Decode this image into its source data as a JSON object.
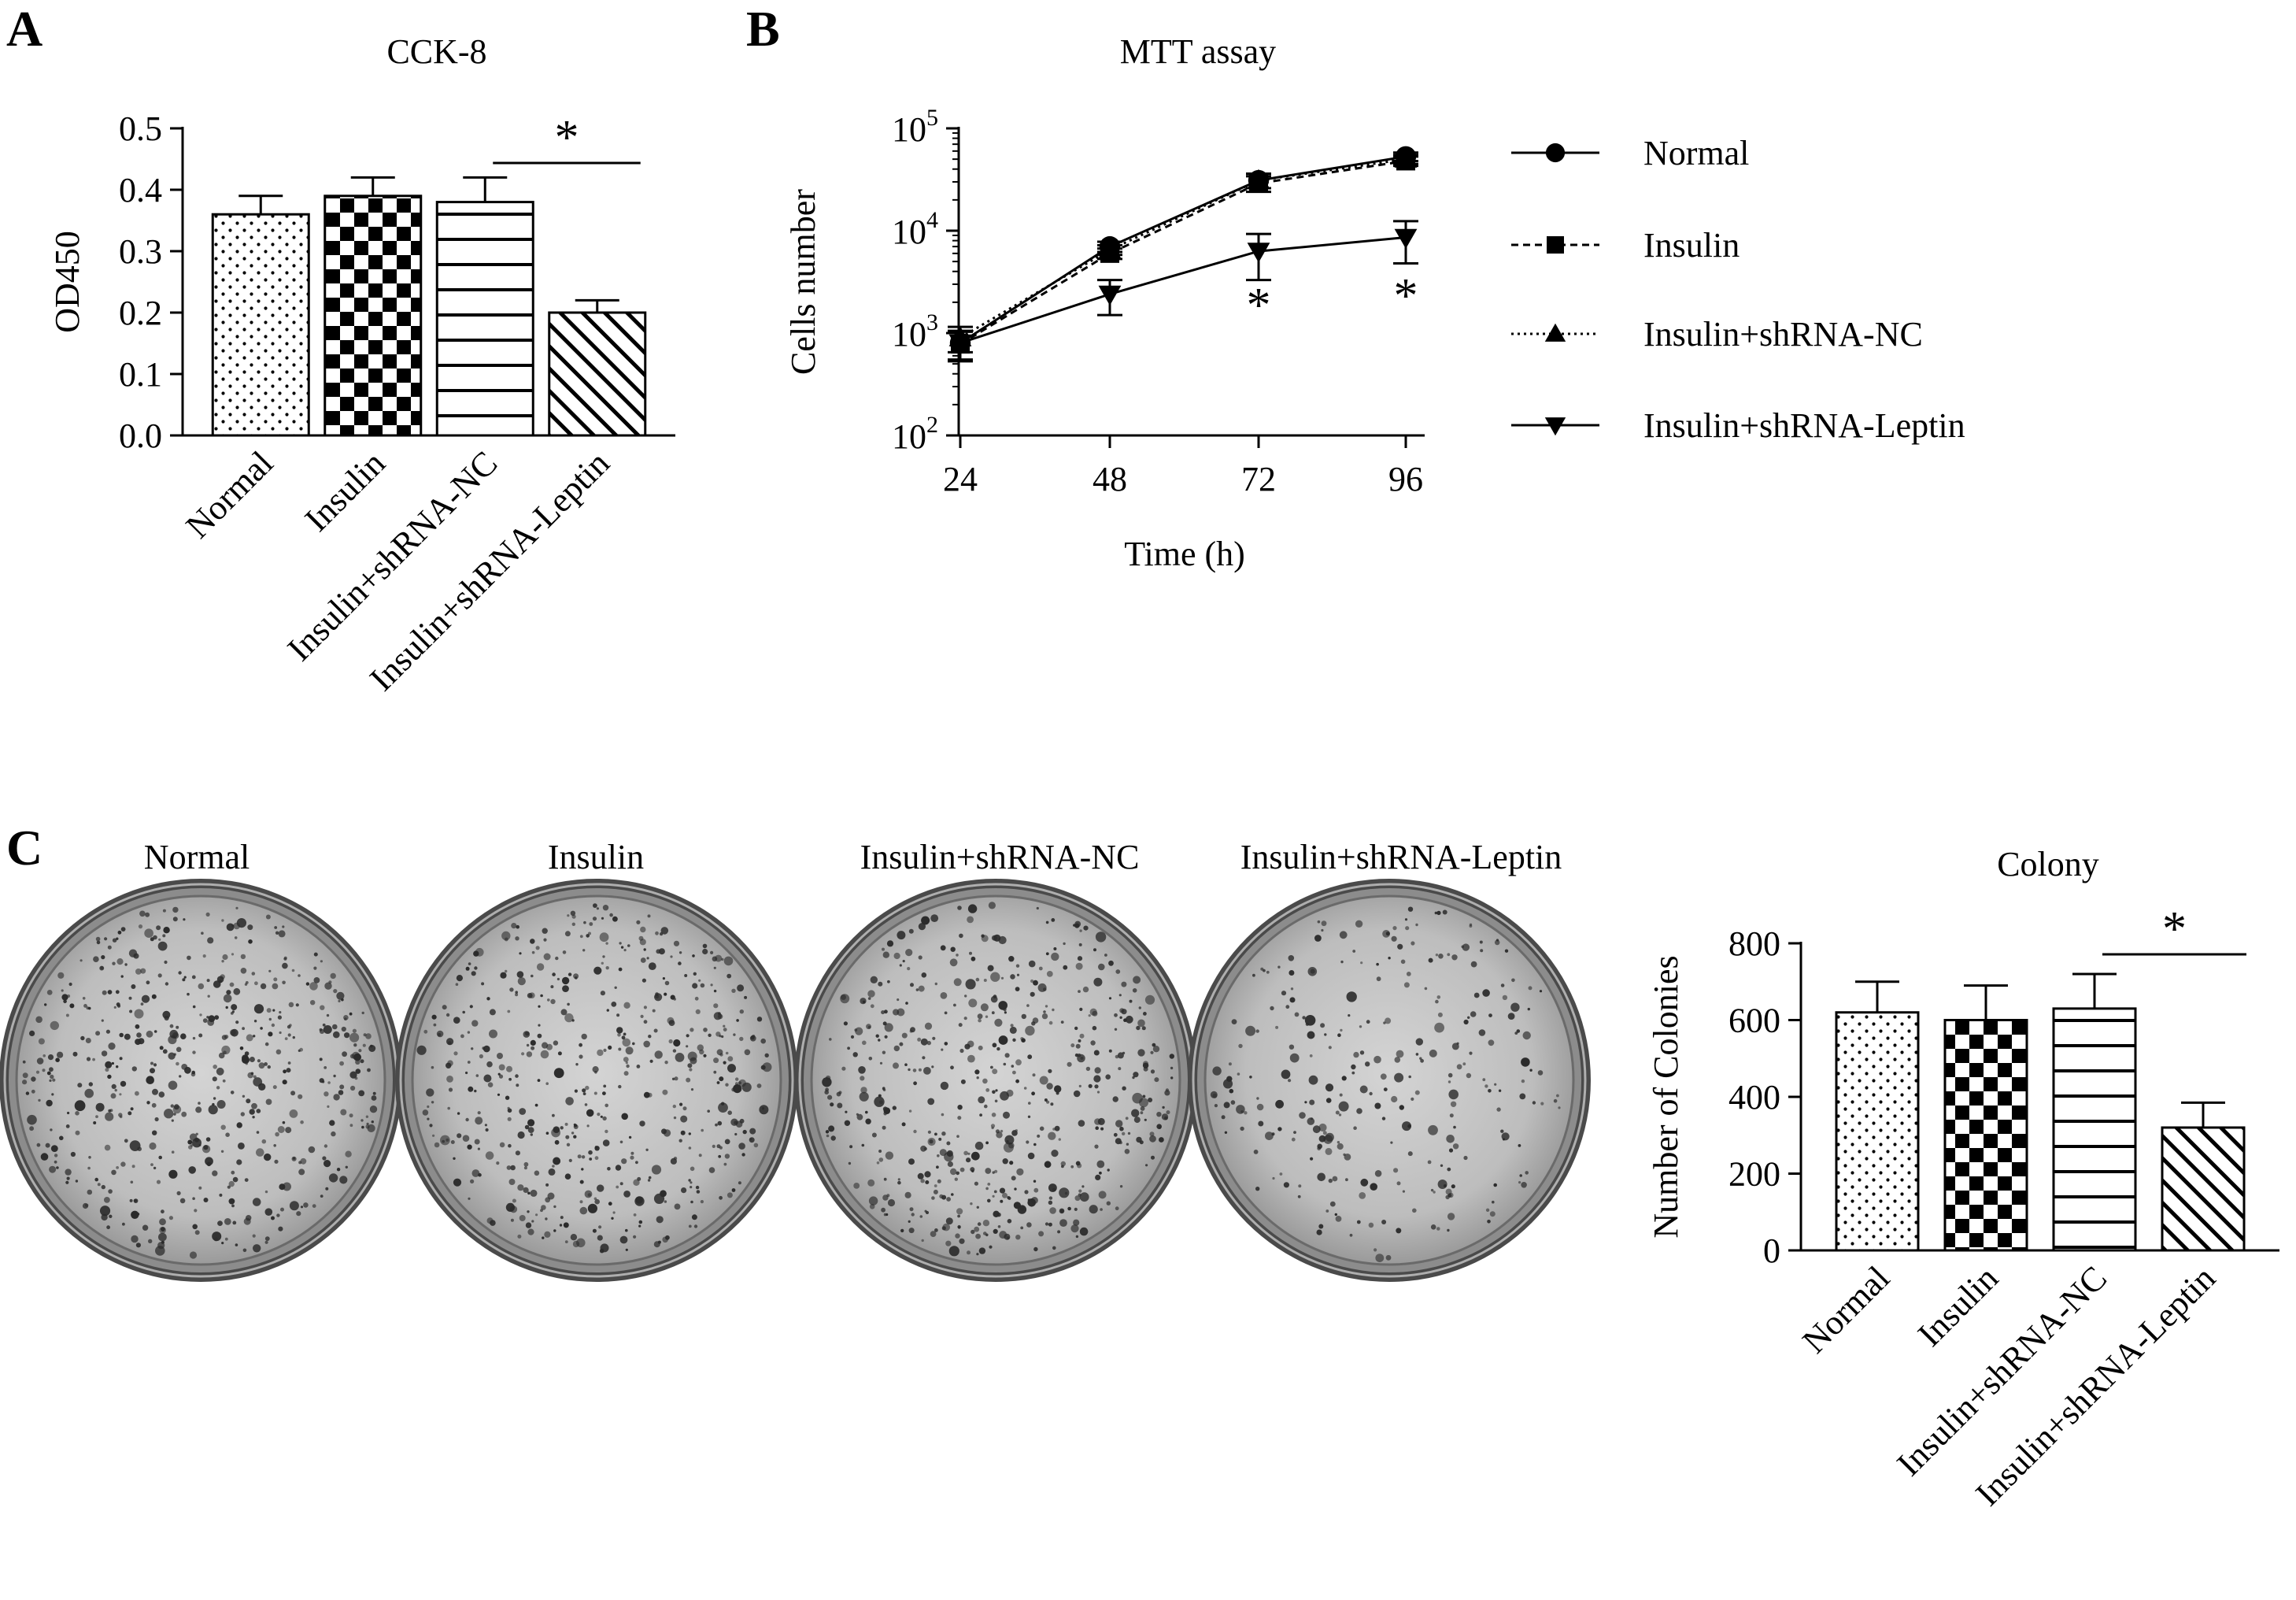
{
  "panels": {
    "a": "A",
    "b": "B",
    "c": "C"
  },
  "colors": {
    "ink": "#000000",
    "background": "#ffffff",
    "dish_rim": "#4a4a4a",
    "dish_inner": "#c4c4c4",
    "colony": "#2b2b2b"
  },
  "plates": {
    "labels": [
      "Normal",
      "Insulin",
      "Insulin+shRNA-NC",
      "Insulin+shRNA-Leptin"
    ],
    "colony_density": [
      620,
      600,
      630,
      320
    ]
  },
  "chart_data": [
    {
      "type": "bar",
      "title": "CCK-8",
      "ylabel": "OD450",
      "xlabel": "",
      "categories": [
        "Normal",
        "Insulin",
        "Insulin+shRNA-NC",
        "Insulin+shRNA-Leptin"
      ],
      "values": [
        0.36,
        0.39,
        0.38,
        0.2
      ],
      "errors": [
        0.03,
        0.03,
        0.04,
        0.02
      ],
      "patterns": [
        "dots",
        "checker",
        "hstripes",
        "diagonal"
      ],
      "ylim": [
        0,
        0.5
      ],
      "yticks": [
        "0.0",
        "0.1",
        "0.2",
        "0.3",
        "0.4",
        "0.5"
      ],
      "significance": {
        "from": 2,
        "to": 3,
        "label": "*"
      }
    },
    {
      "type": "line",
      "title": "MTT assay",
      "xlabel": "Time (h)",
      "ylabel": "Cells number",
      "yscale": "log",
      "ylim": [
        100,
        100000
      ],
      "yticks": [
        {
          "base": "10",
          "exp": "2"
        },
        {
          "base": "10",
          "exp": "3"
        },
        {
          "base": "10",
          "exp": "4"
        },
        {
          "base": "10",
          "exp": "5"
        }
      ],
      "x": [
        24,
        48,
        72,
        96
      ],
      "xticks": [
        "24",
        "48",
        "72",
        "96"
      ],
      "series": [
        {
          "name": "Normal",
          "marker": "circle",
          "dash": "solid",
          "values": [
            800,
            7000,
            31000,
            53000
          ],
          "errors": [
            250,
            800,
            5000,
            5000
          ]
        },
        {
          "name": "Insulin",
          "marker": "square",
          "dash": "dashed",
          "values": [
            780,
            6000,
            29000,
            48000
          ],
          "errors": [
            250,
            700,
            5000,
            5000
          ]
        },
        {
          "name": "Insulin+shRNA-NC",
          "marker": "triangle-up",
          "dash": "dotted",
          "values": [
            900,
            6500,
            31000,
            50000
          ],
          "errors": [
            250,
            700,
            5000,
            5000
          ]
        },
        {
          "name": "Insulin+shRNA-Leptin",
          "marker": "triangle-down",
          "dash": "solid",
          "values": [
            800,
            2400,
            6300,
            8600
          ],
          "errors": [
            250,
            900,
            3000,
            3800
          ]
        }
      ],
      "significance": [
        {
          "x": 72,
          "label": "*"
        },
        {
          "x": 96,
          "label": "*"
        }
      ],
      "legend": "right"
    },
    {
      "type": "bar",
      "title": "Colony",
      "ylabel": "Number of Colonies",
      "xlabel": "",
      "categories": [
        "Normal",
        "Insulin",
        "Insulin+shRNA-NC",
        "Insulin+shRNA-Leptin"
      ],
      "values": [
        620,
        600,
        630,
        320
      ],
      "errors": [
        80,
        90,
        90,
        65
      ],
      "patterns": [
        "dots",
        "checker",
        "hstripes",
        "diagonal"
      ],
      "ylim": [
        0,
        800
      ],
      "yticks": [
        "0",
        "200",
        "400",
        "600",
        "800"
      ],
      "significance": {
        "from": 2,
        "to": 3,
        "label": "*"
      }
    }
  ]
}
